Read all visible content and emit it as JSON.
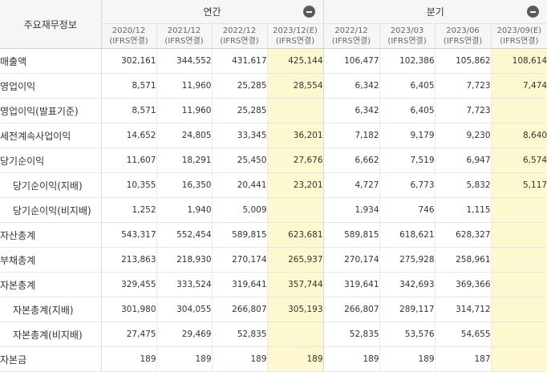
{
  "header": {
    "label": "주요재무정보",
    "annual_label": "연간",
    "quarter_label": "분기",
    "annual_periods": [
      {
        "date": "2020/12",
        "std": "(IFRS연결)"
      },
      {
        "date": "2021/12",
        "std": "(IFRS연결)"
      },
      {
        "date": "2022/12",
        "std": "(IFRS연결)"
      },
      {
        "date": "2023/12(E)",
        "std": "(IFRS연결)"
      }
    ],
    "quarter_periods": [
      {
        "date": "2022/12",
        "std": "(IFRS연결)"
      },
      {
        "date": "2023/03",
        "std": "(IFRS연결)"
      },
      {
        "date": "2023/06",
        "std": "(IFRS연결)"
      },
      {
        "date": "2023/09(E)",
        "std": "(IFRS연결)"
      }
    ]
  },
  "rows": [
    {
      "label": "매출액",
      "sub": false,
      "values": [
        "302,161",
        "344,552",
        "431,617",
        "425,144",
        "106,477",
        "102,386",
        "105,862",
        "108,614"
      ]
    },
    {
      "label": "영업이익",
      "sub": false,
      "values": [
        "8,571",
        "11,960",
        "25,285",
        "28,554",
        "6,342",
        "6,405",
        "7,723",
        "7,474"
      ]
    },
    {
      "label": "영업이익(발표기준)",
      "sub": false,
      "values": [
        "8,571",
        "11,960",
        "25,285",
        "",
        "6,342",
        "6,405",
        "7,723",
        ""
      ]
    },
    {
      "label": "세전계속사업이익",
      "sub": false,
      "values": [
        "14,652",
        "24,805",
        "33,345",
        "36,201",
        "7,182",
        "9,179",
        "9,230",
        "8,640"
      ]
    },
    {
      "label": "당기순이익",
      "sub": false,
      "values": [
        "11,607",
        "18,291",
        "25,450",
        "27,676",
        "6,662",
        "7,519",
        "6,947",
        "6,574"
      ]
    },
    {
      "label": "당기순이익(지배)",
      "sub": true,
      "values": [
        "10,355",
        "16,350",
        "20,441",
        "23,201",
        "4,727",
        "6,773",
        "5,832",
        "5,117"
      ]
    },
    {
      "label": "당기순이익(비지배)",
      "sub": true,
      "values": [
        "1,252",
        "1,940",
        "5,009",
        "",
        "1,934",
        "746",
        "1,115",
        ""
      ]
    },
    {
      "label": "자산총계",
      "sub": false,
      "values": [
        "543,317",
        "552,454",
        "589,815",
        "623,681",
        "589,815",
        "618,621",
        "628,327",
        ""
      ]
    },
    {
      "label": "부채총계",
      "sub": false,
      "values": [
        "213,863",
        "218,930",
        "270,174",
        "265,937",
        "270,174",
        "275,928",
        "258,961",
        ""
      ]
    },
    {
      "label": "자본총계",
      "sub": false,
      "values": [
        "329,455",
        "333,524",
        "319,641",
        "357,744",
        "319,641",
        "342,693",
        "369,366",
        ""
      ]
    },
    {
      "label": "자본총계(지배)",
      "sub": true,
      "values": [
        "301,980",
        "304,055",
        "266,807",
        "305,193",
        "266,807",
        "289,117",
        "314,712",
        ""
      ]
    },
    {
      "label": "자본총계(비지배)",
      "sub": true,
      "values": [
        "27,475",
        "29,469",
        "52,835",
        "",
        "52,835",
        "53,576",
        "54,655",
        ""
      ]
    },
    {
      "label": "자본금",
      "sub": false,
      "values": [
        "189",
        "189",
        "189",
        "189",
        "189",
        "189",
        "187",
        ""
      ]
    }
  ],
  "colors": {
    "estimate_bg": "#fdf8cf",
    "header_bg": "#f6f6f6",
    "collapse_btn": "#5b5b5b"
  },
  "icons": [
    "collapse-minus-icon"
  ]
}
